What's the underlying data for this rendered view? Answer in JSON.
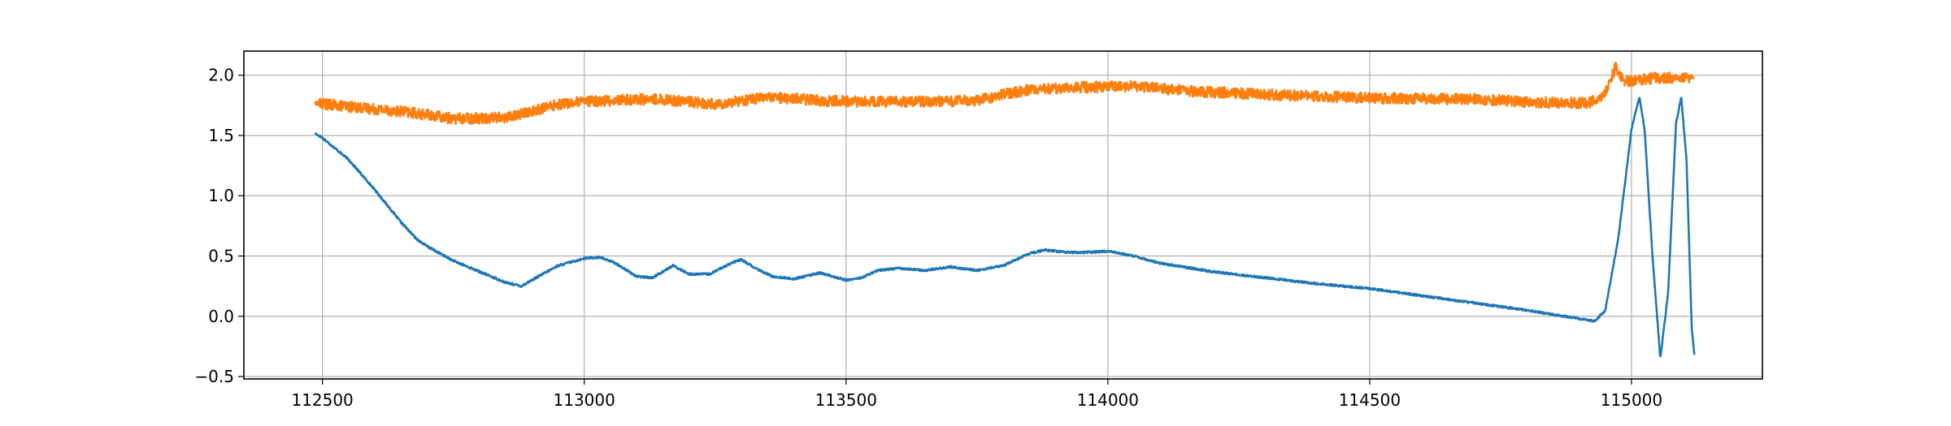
{
  "chart_data": {
    "type": "line",
    "title": "",
    "xlabel": "",
    "ylabel": "",
    "xlim": [
      112350,
      115250
    ],
    "ylim": [
      -0.52,
      2.2
    ],
    "grid": true,
    "legend": null,
    "xticks": [
      112500,
      113000,
      113500,
      114000,
      114500,
      115000
    ],
    "xtick_labels": [
      "112500",
      "113000",
      "113500",
      "114000",
      "114500",
      "115000"
    ],
    "yticks": [
      -0.5,
      0.0,
      0.5,
      1.0,
      1.5,
      2.0
    ],
    "ytick_labels": [
      "−0.5",
      "0.0",
      "0.5",
      "1.0",
      "1.5",
      "2.0"
    ],
    "series": [
      {
        "color": "#1f77b4",
        "noise": 0.008,
        "x": [
          112485,
          112500,
          112550,
          112600,
          112650,
          112680,
          112700,
          112750,
          112800,
          112850,
          112880,
          112900,
          112950,
          113000,
          113030,
          113060,
          113100,
          113130,
          113170,
          113200,
          113240,
          113280,
          113300,
          113330,
          113360,
          113400,
          113450,
          113500,
          113530,
          113560,
          113600,
          113650,
          113700,
          113750,
          113800,
          113850,
          113880,
          113920,
          113960,
          114000,
          114050,
          114100,
          114200,
          114300,
          114400,
          114500,
          114600,
          114700,
          114800,
          114900,
          114930,
          114950,
          114975,
          115000,
          115015,
          115025,
          115040,
          115055,
          115070,
          115085,
          115095,
          115105,
          115115,
          115120
        ],
        "y": [
          1.52,
          1.48,
          1.3,
          1.05,
          0.78,
          0.64,
          0.58,
          0.46,
          0.37,
          0.28,
          0.25,
          0.3,
          0.42,
          0.48,
          0.49,
          0.44,
          0.33,
          0.32,
          0.42,
          0.35,
          0.35,
          0.44,
          0.47,
          0.39,
          0.33,
          0.31,
          0.36,
          0.3,
          0.32,
          0.38,
          0.4,
          0.38,
          0.41,
          0.38,
          0.42,
          0.52,
          0.55,
          0.53,
          0.53,
          0.54,
          0.5,
          0.44,
          0.37,
          0.32,
          0.27,
          0.23,
          0.17,
          0.11,
          0.05,
          -0.02,
          -0.04,
          0.05,
          0.65,
          1.55,
          1.82,
          1.55,
          0.5,
          -0.35,
          0.2,
          1.6,
          1.82,
          1.3,
          -0.1,
          -0.32
        ]
      },
      {
        "color": "#ff7f0e",
        "noise": 0.045,
        "x": [
          112485,
          112550,
          112650,
          112750,
          112850,
          112900,
          112950,
          113000,
          113100,
          113150,
          113250,
          113350,
          113450,
          113550,
          113650,
          113750,
          113800,
          113850,
          113950,
          114050,
          114150,
          114300,
          114500,
          114700,
          114850,
          114920,
          114950,
          114970,
          114985,
          115000,
          115050,
          115120
        ],
        "y": [
          1.77,
          1.74,
          1.7,
          1.64,
          1.65,
          1.7,
          1.76,
          1.78,
          1.8,
          1.8,
          1.76,
          1.82,
          1.79,
          1.78,
          1.78,
          1.79,
          1.84,
          1.88,
          1.9,
          1.91,
          1.87,
          1.84,
          1.81,
          1.8,
          1.77,
          1.77,
          1.85,
          2.07,
          1.95,
          1.95,
          1.98,
          1.98
        ]
      }
    ]
  }
}
